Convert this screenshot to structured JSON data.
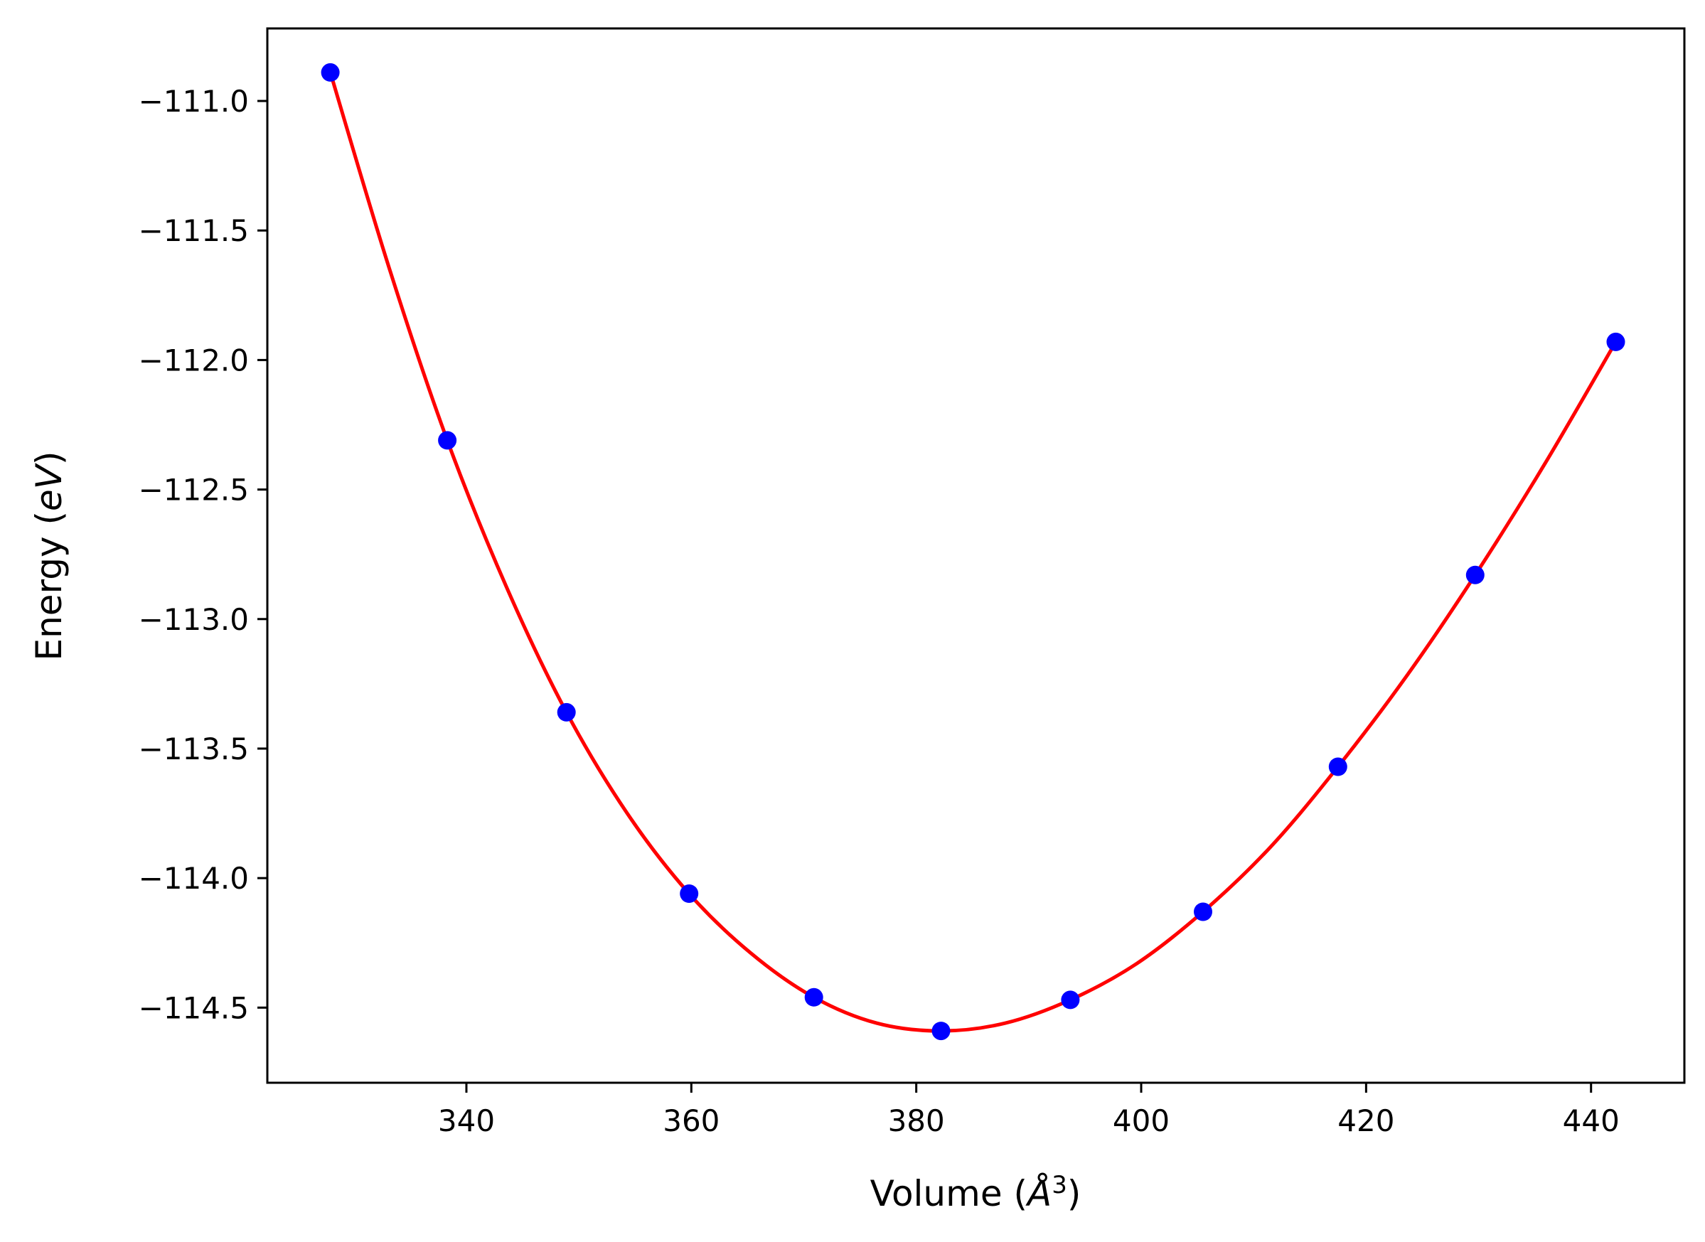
{
  "chart_data": {
    "type": "scatter",
    "title": "",
    "xlabel": "Volume (Å³)",
    "xlabel_parts": {
      "main": "Volume (",
      "symbol": "Å",
      "sup": "3",
      "close": ")"
    },
    "ylabel": "Energy (eV)",
    "ylabel_parts": {
      "main": "Energy (",
      "italic": "eV",
      "close": ")"
    },
    "xlim": [
      322.3,
      448.3
    ],
    "ylim": [
      -114.79,
      -110.72
    ],
    "xticks": [
      340,
      360,
      380,
      400,
      420,
      440
    ],
    "xtick_labels": [
      "340",
      "360",
      "380",
      "400",
      "420",
      "440"
    ],
    "yticks": [
      -111.0,
      -111.5,
      -112.0,
      -112.5,
      -113.0,
      -113.5,
      -114.0,
      -114.5
    ],
    "ytick_labels": [
      "−111.0",
      "−111.5",
      "−112.0",
      "−112.5",
      "−113.0",
      "−113.5",
      "−114.0",
      "−114.5"
    ],
    "grid": false,
    "series": [
      {
        "kind": "points",
        "color": "#0000ff",
        "x": [
          327.9,
          338.3,
          348.9,
          359.8,
          370.9,
          382.2,
          393.7,
          405.5,
          417.5,
          429.7,
          442.2
        ],
        "y": [
          -110.89,
          -112.31,
          -113.36,
          -114.06,
          -114.46,
          -114.59,
          -114.47,
          -114.13,
          -113.57,
          -112.83,
          -111.93
        ]
      },
      {
        "kind": "fit-curve",
        "color": "#ff0000",
        "x": [
          327.9,
          333.1,
          338.3,
          343.6,
          348.9,
          354.3,
          359.8,
          365.3,
          370.9,
          376.5,
          382.2,
          387.9,
          393.7,
          399.6,
          405.5,
          411.5,
          417.5,
          423.6,
          429.7,
          435.9,
          442.2
        ],
        "y": [
          -110.89,
          -111.64,
          -112.31,
          -112.88,
          -113.36,
          -113.75,
          -114.06,
          -114.29,
          -114.46,
          -114.56,
          -114.59,
          -114.56,
          -114.47,
          -114.33,
          -114.13,
          -113.88,
          -113.57,
          -113.22,
          -112.83,
          -112.4,
          -111.93
        ]
      }
    ]
  }
}
